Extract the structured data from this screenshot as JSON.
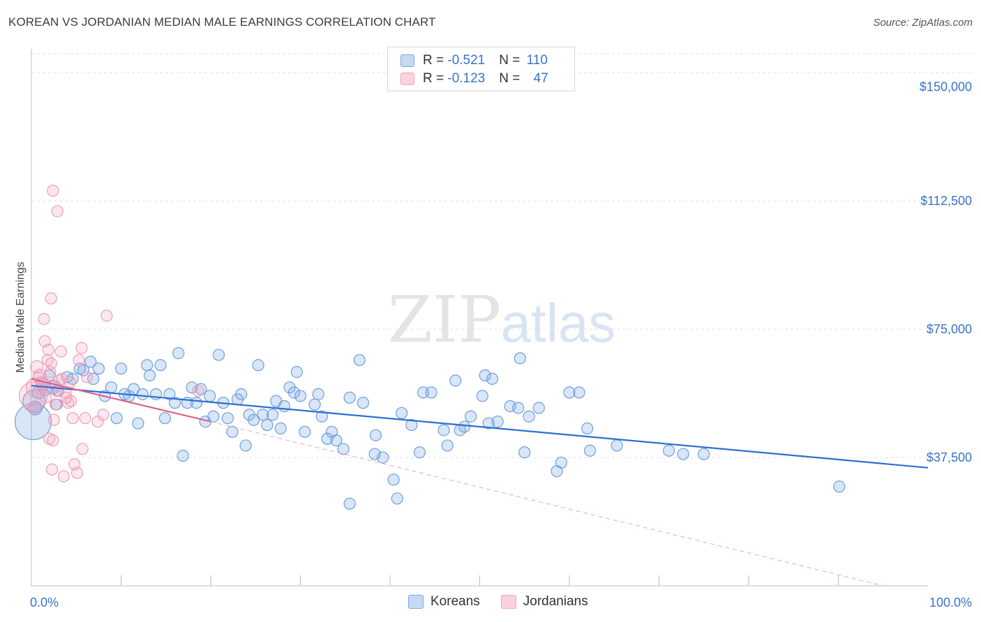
{
  "title": "KOREAN VS JORDANIAN MEDIAN MALE EARNINGS CORRELATION CHART",
  "source": "Source: ZipAtlas.com",
  "watermark": {
    "zip": "ZIP",
    "atlas": "atlas"
  },
  "legend": {
    "rows": [
      {
        "r_label": "R = ",
        "r_value": "-0.521",
        "n_label": "N = ",
        "n_value": "110",
        "color": "#7aa7e0"
      },
      {
        "r_label": "R = ",
        "r_value": "-0.123",
        "n_label": "N = ",
        "n_value": "47",
        "color": "#f0a3bb"
      }
    ]
  },
  "bottom_legend": [
    "Koreans",
    "Jordanians"
  ],
  "chart_data": {
    "type": "scatter",
    "ylabel": "Median Male Earnings",
    "xlim": [
      0,
      100
    ],
    "ylim": [
      0,
      157000
    ],
    "x_tick_labels": [
      "0.0%",
      "100.0%"
    ],
    "y_ticks": [
      {
        "value": 150000,
        "label": "$150,000"
      },
      {
        "value": 112500,
        "label": "$112,500"
      },
      {
        "value": 75000,
        "label": "$75,000"
      },
      {
        "value": 37500,
        "label": "$37,500"
      }
    ],
    "colors": {
      "koreans": "#6b9fdc",
      "jordanians": "#f0a3bb",
      "koreans_line": "#2d6fcf",
      "jordanians_line": "#e0608a",
      "value_text": "#3a73c8"
    },
    "series": [
      {
        "name": "Koreans",
        "trend": {
          "x0": 0,
          "y0": 58500,
          "x1": 100,
          "y1": 34500
        },
        "points": [
          [
            0.2,
            48000,
            26
          ],
          [
            0.3,
            54000,
            16
          ],
          [
            0.4,
            52000,
            10
          ],
          [
            0.8,
            56500,
            9
          ],
          [
            1.2,
            59000,
            9
          ],
          [
            1.6,
            57500,
            9
          ],
          [
            2.0,
            61500,
            8
          ],
          [
            2.4,
            58000,
            9
          ],
          [
            2.8,
            53000,
            8
          ],
          [
            3.0,
            57000,
            8
          ],
          [
            4.0,
            61000,
            8
          ],
          [
            4.6,
            60500,
            8
          ],
          [
            5.4,
            63500,
            8
          ],
          [
            5.8,
            63000,
            8
          ],
          [
            6.6,
            65500,
            8
          ],
          [
            6.9,
            60500,
            8
          ],
          [
            7.5,
            63500,
            8
          ],
          [
            8.9,
            58000,
            8
          ],
          [
            8.2,
            55500,
            8
          ],
          [
            9.5,
            49000,
            8
          ],
          [
            10.0,
            63500,
            8
          ],
          [
            10.4,
            56000,
            8
          ],
          [
            10.9,
            55500,
            8
          ],
          [
            11.4,
            57500,
            8
          ],
          [
            11.9,
            47500,
            8
          ],
          [
            12.4,
            56000,
            8
          ],
          [
            12.9,
            64500,
            8
          ],
          [
            13.2,
            61500,
            8
          ],
          [
            13.9,
            56000,
            8
          ],
          [
            14.4,
            64500,
            8
          ],
          [
            14.9,
            49000,
            8
          ],
          [
            15.4,
            56000,
            8
          ],
          [
            16.0,
            53500,
            8
          ],
          [
            16.4,
            68000,
            8
          ],
          [
            16.9,
            38000,
            8
          ],
          [
            17.4,
            53500,
            8
          ],
          [
            17.9,
            58000,
            8
          ],
          [
            18.4,
            53500,
            8
          ],
          [
            18.9,
            57500,
            8
          ],
          [
            19.4,
            48000,
            8
          ],
          [
            19.9,
            55500,
            8
          ],
          [
            20.3,
            49500,
            8
          ],
          [
            20.9,
            67500,
            8
          ],
          [
            21.4,
            53500,
            8
          ],
          [
            21.9,
            49000,
            8
          ],
          [
            22.4,
            45000,
            8
          ],
          [
            23.0,
            54500,
            8
          ],
          [
            23.4,
            56000,
            8
          ],
          [
            23.9,
            41000,
            8
          ],
          [
            24.3,
            50000,
            8
          ],
          [
            24.8,
            48500,
            8
          ],
          [
            25.3,
            64500,
            8
          ],
          [
            25.8,
            50000,
            8
          ],
          [
            26.3,
            47000,
            8
          ],
          [
            26.9,
            50000,
            8
          ],
          [
            27.3,
            54000,
            8
          ],
          [
            27.8,
            46000,
            8
          ],
          [
            28.2,
            52500,
            8
          ],
          [
            28.8,
            58000,
            8
          ],
          [
            29.3,
            56500,
            8
          ],
          [
            29.6,
            62500,
            8
          ],
          [
            30.0,
            55500,
            8
          ],
          [
            30.5,
            45000,
            8
          ],
          [
            31.6,
            53000,
            8
          ],
          [
            32.0,
            56000,
            8
          ],
          [
            32.4,
            49500,
            8
          ],
          [
            33.0,
            43000,
            8
          ],
          [
            33.5,
            45000,
            8
          ],
          [
            34.0,
            42500,
            8
          ],
          [
            34.8,
            40000,
            8
          ],
          [
            35.5,
            55000,
            8
          ],
          [
            36.6,
            66000,
            8
          ],
          [
            37.0,
            53500,
            8
          ],
          [
            38.3,
            38500,
            8
          ],
          [
            38.4,
            44000,
            8
          ],
          [
            39.2,
            37500,
            8
          ],
          [
            40.4,
            31000,
            8
          ],
          [
            40.8,
            25500,
            8
          ],
          [
            41.3,
            50500,
            8
          ],
          [
            42.4,
            47000,
            8
          ],
          [
            43.3,
            39000,
            8
          ],
          [
            43.7,
            56500,
            8
          ],
          [
            44.6,
            56500,
            8
          ],
          [
            46.0,
            45500,
            8
          ],
          [
            46.4,
            41000,
            8
          ],
          [
            47.3,
            60000,
            8
          ],
          [
            47.8,
            45500,
            8
          ],
          [
            48.3,
            46500,
            8
          ],
          [
            49.0,
            49500,
            8
          ],
          [
            50.3,
            55500,
            8
          ],
          [
            50.6,
            61500,
            8
          ],
          [
            51.0,
            47500,
            8
          ],
          [
            51.4,
            60500,
            8
          ],
          [
            52.0,
            48000,
            8
          ],
          [
            53.4,
            52500,
            8
          ],
          [
            54.3,
            52000,
            8
          ],
          [
            54.5,
            66500,
            8
          ],
          [
            55.5,
            49500,
            8
          ],
          [
            56.6,
            52000,
            8
          ],
          [
            55.0,
            39000,
            8
          ],
          [
            58.6,
            33500,
            8
          ],
          [
            59.1,
            36000,
            8
          ],
          [
            60.0,
            56500,
            8
          ],
          [
            61.1,
            56500,
            8
          ],
          [
            62.0,
            46000,
            8
          ],
          [
            62.3,
            39500,
            8
          ],
          [
            65.3,
            41000,
            8
          ],
          [
            71.1,
            39500,
            8
          ],
          [
            72.7,
            38500,
            8
          ],
          [
            75.0,
            38500,
            8
          ],
          [
            90.1,
            29000,
            8
          ],
          [
            35.5,
            24000,
            8
          ]
        ]
      },
      {
        "name": "Jordanians",
        "trend": {
          "x0": 0,
          "y0": 60500,
          "x1": 20,
          "y1": 48000
        },
        "trend_dashed": {
          "x0": 20,
          "y0": 48000,
          "x1": 95,
          "y1": 0
        },
        "points": [
          [
            0.2,
            55500,
            20
          ],
          [
            0.5,
            58000,
            14
          ],
          [
            0.3,
            52000,
            9
          ],
          [
            0.6,
            64000,
            9
          ],
          [
            0.9,
            61500,
            9
          ],
          [
            1.2,
            59500,
            9
          ],
          [
            1.4,
            78000,
            8
          ],
          [
            1.5,
            71500,
            8
          ],
          [
            1.8,
            66000,
            8
          ],
          [
            1.9,
            69000,
            8
          ],
          [
            2.1,
            62500,
            8
          ],
          [
            2.2,
            65000,
            8
          ],
          [
            2.0,
            43000,
            8
          ],
          [
            2.4,
            42500,
            8
          ],
          [
            2.6,
            58500,
            8
          ],
          [
            2.2,
            84000,
            8
          ],
          [
            2.4,
            115500,
            8
          ],
          [
            2.8,
            57000,
            8
          ],
          [
            2.3,
            34000,
            8
          ],
          [
            2.5,
            48500,
            8
          ],
          [
            2.7,
            53000,
            8
          ],
          [
            2.9,
            109500,
            8
          ],
          [
            3.3,
            68500,
            8
          ],
          [
            3.4,
            60500,
            8
          ],
          [
            3.6,
            32000,
            8
          ],
          [
            3.8,
            56500,
            8
          ],
          [
            3.9,
            55000,
            8
          ],
          [
            4.1,
            53500,
            8
          ],
          [
            4.3,
            59500,
            8
          ],
          [
            4.6,
            49000,
            8
          ],
          [
            4.8,
            35500,
            8
          ],
          [
            5.1,
            33000,
            8
          ],
          [
            5.3,
            66000,
            8
          ],
          [
            5.6,
            69500,
            8
          ],
          [
            5.7,
            40000,
            8
          ],
          [
            6.0,
            49000,
            8
          ],
          [
            6.2,
            61000,
            8
          ],
          [
            7.4,
            48000,
            8
          ],
          [
            8.0,
            50000,
            8
          ],
          [
            8.4,
            79000,
            8
          ],
          [
            18.6,
            57000,
            8
          ],
          [
            1.0,
            57500,
            8
          ],
          [
            1.3,
            59000,
            8
          ],
          [
            0.8,
            61000,
            8
          ],
          [
            1.6,
            55000,
            8
          ],
          [
            3.1,
            60000,
            8
          ],
          [
            4.4,
            54000,
            8
          ]
        ]
      }
    ]
  }
}
